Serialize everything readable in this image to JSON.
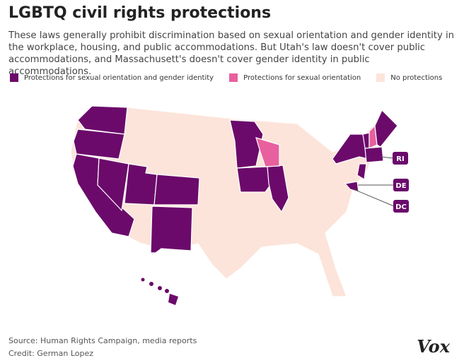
{
  "header": {
    "title": "LGBTQ civil rights protections",
    "subtitle": "These laws generally prohibit discrimination based on sexual orientation and gender identity in the workplace, housing, and public accommodations. But Utah's law doesn't cover public accommodations, and Massachusett's doesn't cover gender identity in public accommodations."
  },
  "legend": [
    {
      "label": "Protections for sexual orientation and gender identity",
      "color": "#6b0a6b"
    },
    {
      "label": "Protections for sexual orientation",
      "color": "#e9609e"
    },
    {
      "label": "No protections",
      "color": "#fce4da"
    }
  ],
  "map": {
    "callouts": [
      "RI",
      "DE",
      "DC"
    ]
  },
  "footer": {
    "source": "Source: Human Rights Campaign, media reports",
    "credit": "Credit: German Lopez",
    "logo": "Vox"
  }
}
